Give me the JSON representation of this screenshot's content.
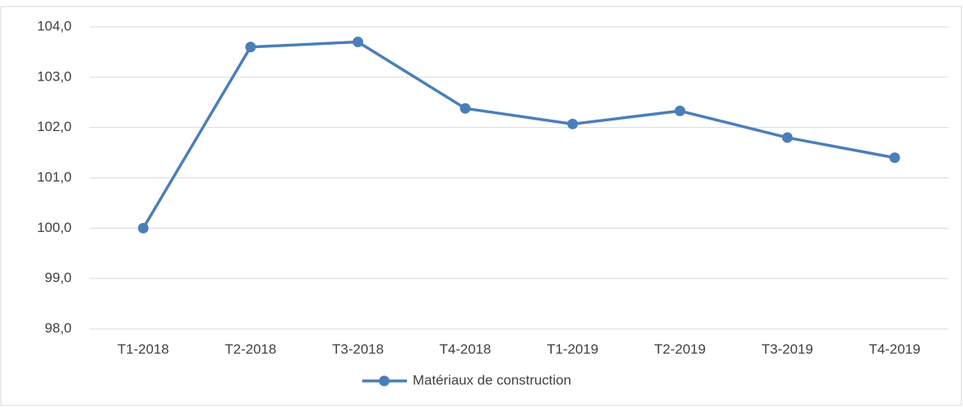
{
  "chart_data": {
    "type": "line",
    "categories": [
      "T1-2018",
      "T2-2018",
      "T3-2018",
      "T4-2018",
      "T1-2019",
      "T2-2019",
      "T3-2019",
      "T4-2019"
    ],
    "series": [
      {
        "name": "Matériaux de construction",
        "color": "#4a7ebb",
        "values": [
          100.0,
          103.6,
          103.7,
          102.38,
          102.07,
          102.33,
          101.8,
          101.4
        ]
      }
    ],
    "ylim": [
      98,
      104
    ],
    "yticks": [
      {
        "value": 98,
        "label": "98,0"
      },
      {
        "value": 99,
        "label": "99,0"
      },
      {
        "value": 100,
        "label": "100,0"
      },
      {
        "value": 101,
        "label": "101,0"
      },
      {
        "value": 102,
        "label": "102,0"
      },
      {
        "value": 103,
        "label": "103,0"
      },
      {
        "value": 104,
        "label": "104,0"
      }
    ],
    "grid": true,
    "legend": "bottom"
  }
}
